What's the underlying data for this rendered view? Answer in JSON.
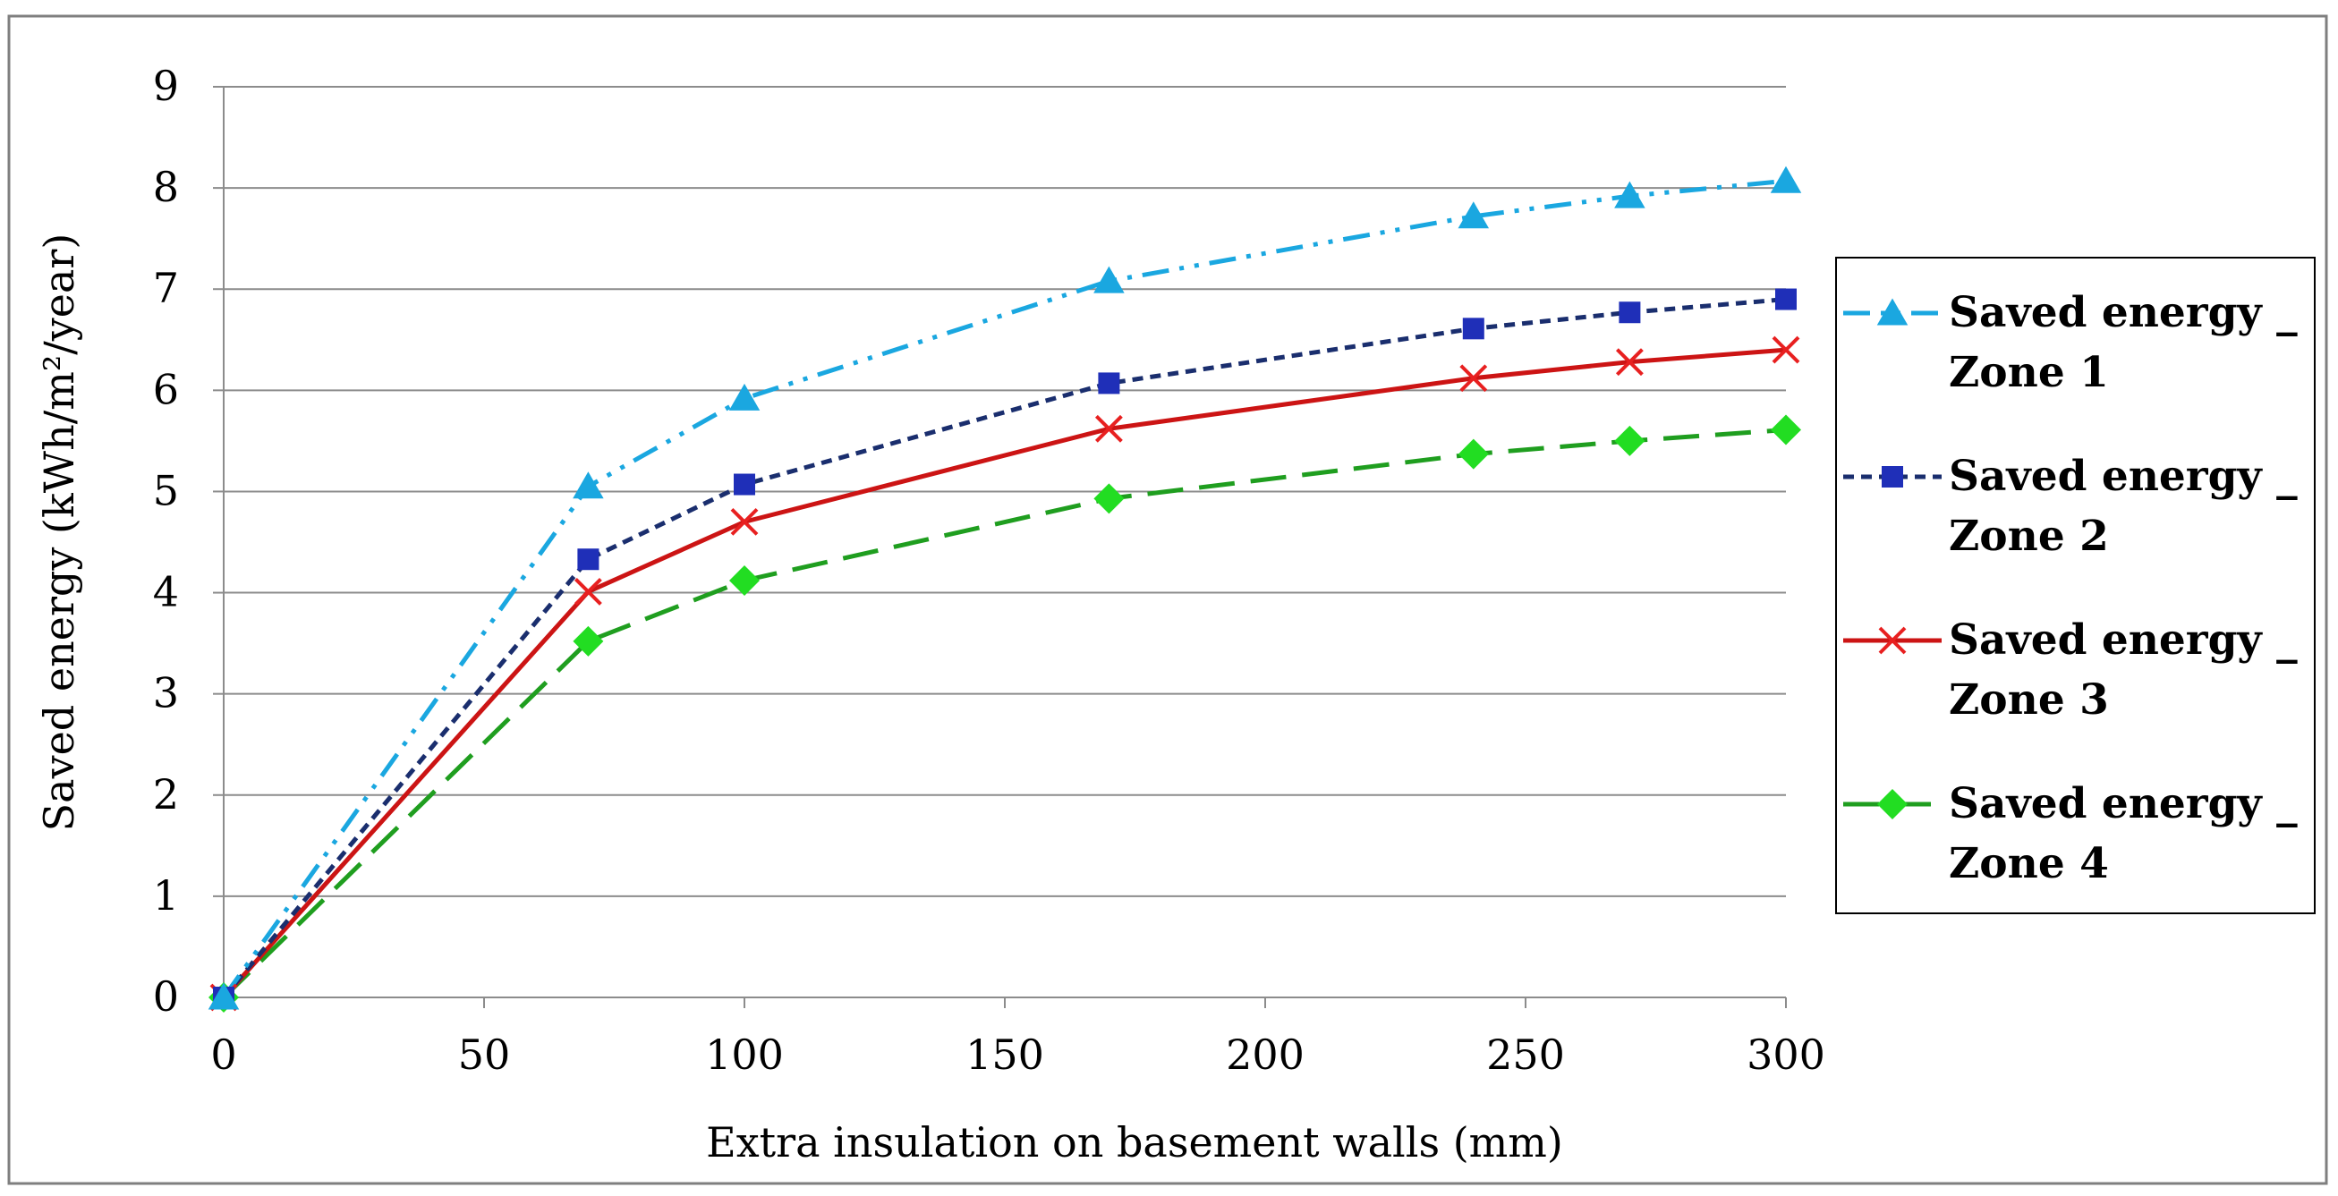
{
  "chart_data": {
    "type": "line",
    "xlabel": "Extra insulation on basement walls (mm)",
    "ylabel": "Saved energy (kWh/m²/year)",
    "xlim": [
      0,
      300
    ],
    "ylim": [
      0,
      9
    ],
    "xticks": [
      "0",
      "50",
      "100",
      "150",
      "200",
      "250",
      "300"
    ],
    "yticks": [
      "0",
      "1",
      "2",
      "3",
      "4",
      "5",
      "6",
      "7",
      "8",
      "9"
    ],
    "grid": "horizontal",
    "legend_position": "right",
    "x": [
      0,
      70,
      100,
      170,
      240,
      270,
      300
    ],
    "series": [
      {
        "name": "Saved energy _ Zone 1",
        "name_lines": [
          "Saved energy _",
          "Zone 1"
        ],
        "values": [
          0.0,
          5.05,
          5.92,
          7.08,
          7.72,
          7.92,
          8.07
        ],
        "color": "#1aa7e0",
        "marker": "triangle",
        "dash": "dash-dot-dot"
      },
      {
        "name": "Saved energy _ Zone 2",
        "name_lines": [
          "Saved energy _",
          "Zone 2"
        ],
        "values": [
          0.0,
          4.33,
          5.07,
          6.07,
          6.61,
          6.77,
          6.9
        ],
        "color": "#1a2e6e",
        "marker_color": "#1f2fb8",
        "marker": "square",
        "dash": "short-dash"
      },
      {
        "name": "Saved energy _ Zone 3",
        "name_lines": [
          "Saved energy _",
          "Zone 3"
        ],
        "values": [
          0.0,
          4.01,
          4.7,
          5.62,
          6.12,
          6.28,
          6.4
        ],
        "color": "#cc1414",
        "marker_color": "#e82020",
        "marker": "x",
        "dash": "solid"
      },
      {
        "name": "Saved energy _ Zone 4",
        "name_lines": [
          "Saved energy _",
          "Zone 4"
        ],
        "values": [
          0.0,
          3.52,
          4.12,
          4.93,
          5.37,
          5.5,
          5.61
        ],
        "color": "#1f9e1f",
        "marker_color": "#22dd22",
        "marker": "diamond",
        "dash": "long-dash"
      }
    ]
  }
}
